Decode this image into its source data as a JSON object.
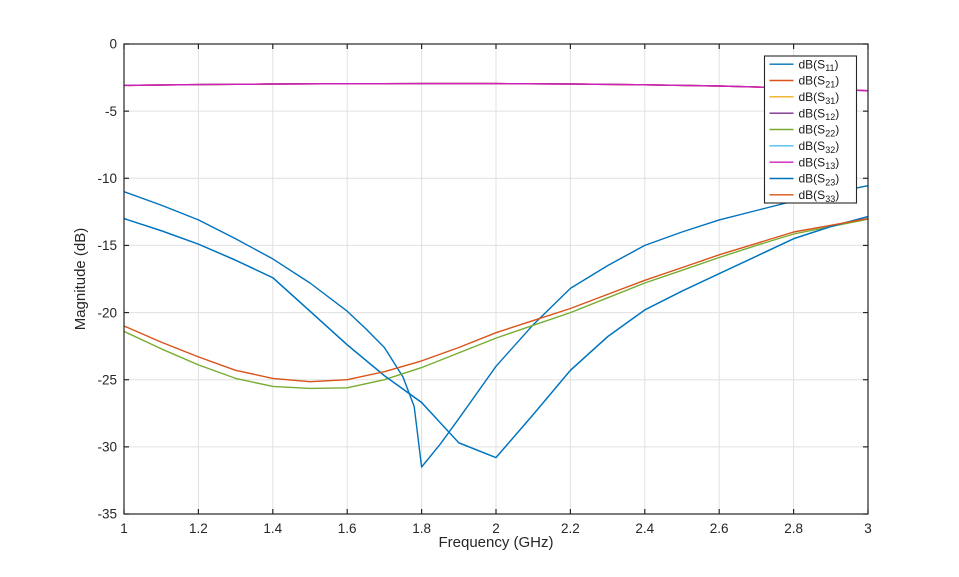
{
  "chart_data": {
    "type": "line",
    "title": "",
    "xlabel": "Frequency (GHz)",
    "ylabel": "Magnitude (dB)",
    "xlim": [
      1,
      3
    ],
    "ylim": [
      -35,
      0
    ],
    "xticks": [
      1,
      1.2,
      1.4,
      1.6,
      1.8,
      2,
      2.2,
      2.4,
      2.6,
      2.8,
      3
    ],
    "xtick_labels": [
      "1",
      "1.2",
      "1.4",
      "1.6",
      "1.8",
      "2",
      "2.2",
      "2.4",
      "2.6",
      "2.8",
      "3"
    ],
    "yticks": [
      0,
      -5,
      -10,
      -15,
      -20,
      -25,
      -30,
      -35
    ],
    "ytick_labels": [
      "0",
      "-5",
      "-10",
      "-15",
      "-20",
      "-25",
      "-30",
      "-35"
    ],
    "grid": true,
    "box": true,
    "axis_color": "#262626",
    "grid_color": "#E0E0E0",
    "background": "#FFFFFF",
    "legend_position": "top-right",
    "legend_border_color": "#262626",
    "series": [
      {
        "key": "s11",
        "label": {
          "pre": "dB(S",
          "sub": "11",
          "post": ")"
        },
        "color": "#0072BD",
        "points": [
          [
            1.0,
            -11.0
          ],
          [
            1.1,
            -12.0
          ],
          [
            1.2,
            -13.1
          ],
          [
            1.3,
            -14.5
          ],
          [
            1.4,
            -16.0
          ],
          [
            1.5,
            -17.8
          ],
          [
            1.6,
            -19.9
          ],
          [
            1.65,
            -21.2
          ],
          [
            1.7,
            -22.6
          ],
          [
            1.75,
            -24.8
          ],
          [
            1.78,
            -27.0
          ],
          [
            1.8,
            -31.5
          ],
          [
            1.85,
            -29.8
          ],
          [
            1.9,
            -27.9
          ],
          [
            2.0,
            -24.0
          ],
          [
            2.1,
            -20.9
          ],
          [
            2.2,
            -18.2
          ],
          [
            2.3,
            -16.5
          ],
          [
            2.4,
            -15.0
          ],
          [
            2.5,
            -14.0
          ],
          [
            2.6,
            -13.1
          ],
          [
            2.7,
            -12.4
          ],
          [
            2.8,
            -11.7
          ],
          [
            2.9,
            -11.1
          ],
          [
            3.0,
            -10.55
          ]
        ]
      },
      {
        "key": "s21",
        "label": {
          "pre": "dB(S",
          "sub": "21",
          "post": ")"
        },
        "color": "#D95319",
        "points": [
          [
            1.0,
            -3.08
          ],
          [
            1.2,
            -3.02
          ],
          [
            1.4,
            -2.98
          ],
          [
            1.6,
            -2.96
          ],
          [
            1.8,
            -2.95
          ],
          [
            2.0,
            -2.95
          ],
          [
            2.2,
            -2.98
          ],
          [
            2.4,
            -3.04
          ],
          [
            2.6,
            -3.13
          ],
          [
            2.8,
            -3.28
          ],
          [
            3.0,
            -3.48
          ]
        ]
      },
      {
        "key": "s31",
        "label": {
          "pre": "dB(S",
          "sub": "31",
          "post": ")"
        },
        "color": "#EDB120",
        "points": [
          [
            1.0,
            -3.08
          ],
          [
            1.2,
            -3.02
          ],
          [
            1.4,
            -2.98
          ],
          [
            1.6,
            -2.96
          ],
          [
            1.8,
            -2.95
          ],
          [
            2.0,
            -2.95
          ],
          [
            2.2,
            -2.98
          ],
          [
            2.4,
            -3.04
          ],
          [
            2.6,
            -3.13
          ],
          [
            2.8,
            -3.28
          ],
          [
            3.0,
            -3.48
          ]
        ]
      },
      {
        "key": "s12",
        "label": {
          "pre": "dB(S",
          "sub": "12",
          "post": ")"
        },
        "color": "#7E2F8E",
        "points": [
          [
            1.0,
            -3.08
          ],
          [
            1.2,
            -3.02
          ],
          [
            1.4,
            -2.98
          ],
          [
            1.6,
            -2.96
          ],
          [
            1.8,
            -2.95
          ],
          [
            2.0,
            -2.95
          ],
          [
            2.2,
            -2.98
          ],
          [
            2.4,
            -3.04
          ],
          [
            2.6,
            -3.13
          ],
          [
            2.8,
            -3.28
          ],
          [
            3.0,
            -3.48
          ]
        ]
      },
      {
        "key": "s22",
        "label": {
          "pre": "dB(S",
          "sub": "22",
          "post": ")"
        },
        "color": "#77AC30",
        "points": [
          [
            1.0,
            -21.4
          ],
          [
            1.1,
            -22.7
          ],
          [
            1.2,
            -23.9
          ],
          [
            1.3,
            -24.9
          ],
          [
            1.4,
            -25.5
          ],
          [
            1.5,
            -25.65
          ],
          [
            1.6,
            -25.6
          ],
          [
            1.7,
            -25.0
          ],
          [
            1.8,
            -24.1
          ],
          [
            1.9,
            -23.0
          ],
          [
            2.0,
            -21.9
          ],
          [
            2.1,
            -20.95
          ],
          [
            2.2,
            -20.0
          ],
          [
            2.3,
            -18.9
          ],
          [
            2.4,
            -17.8
          ],
          [
            2.5,
            -16.85
          ],
          [
            2.6,
            -15.9
          ],
          [
            2.7,
            -15.0
          ],
          [
            2.8,
            -14.15
          ],
          [
            2.9,
            -13.6
          ],
          [
            3.0,
            -13.05
          ]
        ]
      },
      {
        "key": "s32",
        "label": {
          "pre": "dB(S",
          "sub": "32",
          "post": ")"
        },
        "color": "#4DBEEE",
        "points": [
          [
            1.0,
            -13.0
          ],
          [
            1.1,
            -13.9
          ],
          [
            1.2,
            -14.9
          ],
          [
            1.3,
            -16.1
          ],
          [
            1.4,
            -17.4
          ],
          [
            1.5,
            -19.9
          ],
          [
            1.6,
            -22.4
          ],
          [
            1.7,
            -24.7
          ],
          [
            1.8,
            -26.7
          ],
          [
            1.85,
            -28.2
          ],
          [
            1.9,
            -29.7
          ],
          [
            2.0,
            -30.8
          ],
          [
            2.1,
            -27.6
          ],
          [
            2.2,
            -24.3
          ],
          [
            2.3,
            -21.8
          ],
          [
            2.4,
            -19.8
          ],
          [
            2.5,
            -18.4
          ],
          [
            2.6,
            -17.1
          ],
          [
            2.7,
            -15.8
          ],
          [
            2.8,
            -14.5
          ],
          [
            2.9,
            -13.6
          ],
          [
            3.0,
            -12.85
          ]
        ]
      },
      {
        "key": "s13",
        "label": {
          "pre": "dB(S",
          "sub": "13",
          "post": ")"
        },
        "color": "#CE21BB",
        "points": [
          [
            1.0,
            -3.08
          ],
          [
            1.2,
            -3.02
          ],
          [
            1.4,
            -2.98
          ],
          [
            1.6,
            -2.96
          ],
          [
            1.8,
            -2.95
          ],
          [
            2.0,
            -2.95
          ],
          [
            2.2,
            -2.98
          ],
          [
            2.4,
            -3.04
          ],
          [
            2.6,
            -3.13
          ],
          [
            2.8,
            -3.28
          ],
          [
            3.0,
            -3.48
          ]
        ]
      },
      {
        "key": "s23",
        "label": {
          "pre": "dB(S",
          "sub": "23",
          "post": ")"
        },
        "color": "#0072BD",
        "points": [
          [
            1.0,
            -13.0
          ],
          [
            1.1,
            -13.9
          ],
          [
            1.2,
            -14.9
          ],
          [
            1.3,
            -16.1
          ],
          [
            1.4,
            -17.4
          ],
          [
            1.5,
            -19.9
          ],
          [
            1.6,
            -22.4
          ],
          [
            1.7,
            -24.7
          ],
          [
            1.8,
            -26.7
          ],
          [
            1.85,
            -28.2
          ],
          [
            1.9,
            -29.7
          ],
          [
            2.0,
            -30.8
          ],
          [
            2.1,
            -27.6
          ],
          [
            2.2,
            -24.3
          ],
          [
            2.3,
            -21.8
          ],
          [
            2.4,
            -19.8
          ],
          [
            2.5,
            -18.4
          ],
          [
            2.6,
            -17.1
          ],
          [
            2.7,
            -15.8
          ],
          [
            2.8,
            -14.5
          ],
          [
            2.9,
            -13.6
          ],
          [
            3.0,
            -12.85
          ]
        ]
      },
      {
        "key": "s33",
        "label": {
          "pre": "dB(S",
          "sub": "33",
          "post": ")"
        },
        "color": "#D95319",
        "points": [
          [
            1.0,
            -21.0
          ],
          [
            1.1,
            -22.2
          ],
          [
            1.2,
            -23.3
          ],
          [
            1.3,
            -24.3
          ],
          [
            1.4,
            -24.9
          ],
          [
            1.5,
            -25.15
          ],
          [
            1.6,
            -25.0
          ],
          [
            1.7,
            -24.4
          ],
          [
            1.8,
            -23.6
          ],
          [
            1.9,
            -22.6
          ],
          [
            2.0,
            -21.5
          ],
          [
            2.1,
            -20.6
          ],
          [
            2.2,
            -19.7
          ],
          [
            2.3,
            -18.65
          ],
          [
            2.4,
            -17.6
          ],
          [
            2.5,
            -16.65
          ],
          [
            2.6,
            -15.7
          ],
          [
            2.7,
            -14.85
          ],
          [
            2.8,
            -14.0
          ],
          [
            2.9,
            -13.5
          ],
          [
            3.0,
            -13.0
          ]
        ]
      }
    ]
  }
}
